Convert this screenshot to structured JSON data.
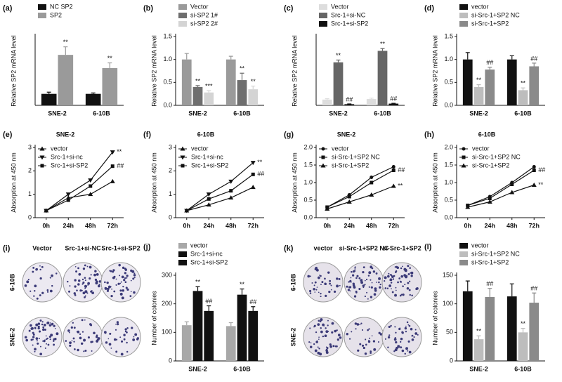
{
  "chart_data": [
    {
      "type": "bar",
      "label": "(a)",
      "ylabel": "Relative SP2 mRNA level",
      "categories": [
        "SNE-2",
        "6-10B"
      ],
      "ylim": [
        0,
        6
      ],
      "series": [
        {
          "name": "NC SP2",
          "color": "#111111",
          "values": [
            1.0,
            1.0
          ],
          "errors": [
            0.15,
            0.08
          ]
        },
        {
          "name": "SP2",
          "color": "#9a9a9a",
          "values": [
            4.4,
            3.25
          ],
          "errors": [
            0.7,
            0.45
          ],
          "annotations": [
            "**",
            "**"
          ]
        }
      ]
    },
    {
      "type": "bar",
      "label": "(b)",
      "ylabel": "Relative SP2 mRNA level",
      "categories": [
        "SNE-2",
        "6-10B"
      ],
      "ylim": [
        0,
        1.5
      ],
      "yticks": [
        {
          "value": 0,
          "label": "0.0"
        },
        {
          "value": 0.5,
          "label": "0.5"
        },
        {
          "value": 1,
          "label": "1.0"
        },
        {
          "value": 1.5,
          "label": "1.5"
        }
      ],
      "series": [
        {
          "name": "Vector",
          "color": "#9a9a9a",
          "values": [
            1.0,
            1.0
          ],
          "errors": [
            0.13,
            0.07
          ]
        },
        {
          "name": "si-SP2 1#",
          "color": "#6e6e6e",
          "values": [
            0.4,
            0.55
          ],
          "errors": [
            0.03,
            0.15
          ],
          "annotations": [
            "**",
            "**"
          ]
        },
        {
          "name": "si-SP2 2#",
          "color": "#d4d4d4",
          "values": [
            0.28,
            0.35
          ],
          "errors": [
            0.04,
            0.07
          ],
          "annotations": [
            "***",
            "**"
          ]
        }
      ]
    },
    {
      "type": "bar",
      "label": "(c)",
      "ylabel": "Relative SP2 mRNA level",
      "categories": [
        "SNE-2",
        "6-10B"
      ],
      "ylim": [
        0,
        12
      ],
      "series": [
        {
          "name": "Vector",
          "color": "#dddddd",
          "values": [
            1.0,
            1.1
          ],
          "errors": [
            0.15,
            0.15
          ]
        },
        {
          "name": "Src-1+si-NC",
          "color": "#666666",
          "values": [
            7.5,
            9.5
          ],
          "errors": [
            0.4,
            0.4
          ],
          "annotations": [
            "**",
            "**"
          ]
        },
        {
          "name": "Src-1+si-SP2",
          "color": "#111111",
          "values": [
            0.2,
            0.3
          ],
          "errors": [
            0.05,
            0.05
          ],
          "annotations": [
            "##",
            "##"
          ]
        }
      ]
    },
    {
      "type": "bar",
      "label": "(d)",
      "ylabel": "Relative SP2 mRNA level",
      "categories": [
        "SNE-2",
        "6-10B"
      ],
      "ylim": [
        0,
        1.5
      ],
      "yticks": [
        {
          "value": 0,
          "label": "0.0"
        },
        {
          "value": 0.5,
          "label": "0.5"
        },
        {
          "value": 1,
          "label": "1.0"
        },
        {
          "value": 1.5,
          "label": "1.5"
        }
      ],
      "series": [
        {
          "name": "vector",
          "color": "#111111",
          "values": [
            1.0,
            1.0
          ],
          "errors": [
            0.15,
            0.08
          ]
        },
        {
          "name": "si-Src-1+SP2 NC",
          "color": "#bdbdbd",
          "values": [
            0.4,
            0.33
          ],
          "errors": [
            0.05,
            0.05
          ],
          "annotations": [
            "**",
            "**"
          ]
        },
        {
          "name": "si-Src-1+SP2",
          "color": "#8a8a8a",
          "values": [
            0.78,
            0.85
          ],
          "errors": [
            0.05,
            0.07
          ],
          "annotations": [
            "##",
            "##"
          ]
        }
      ]
    },
    {
      "type": "line",
      "label": "(e)",
      "title": "SNE-2",
      "ylabel": "Absorption at 450 nm",
      "categories": [
        "0h",
        "24h",
        "48h",
        "72h"
      ],
      "ylim": [
        0,
        3
      ],
      "yticks": [
        0,
        1,
        2,
        3
      ],
      "series": [
        {
          "name": "vector",
          "marker": "triangle-up",
          "values": [
            0.3,
            0.85,
            1.0,
            1.55
          ]
        },
        {
          "name": "Src-1+si-nc",
          "marker": "triangle-down",
          "values": [
            0.3,
            1.0,
            1.6,
            2.8
          ],
          "end_annotation": "**"
        },
        {
          "name": "Src-1+si-SP2",
          "marker": "square",
          "values": [
            0.3,
            0.75,
            1.35,
            2.2
          ],
          "end_annotation": "##"
        }
      ]
    },
    {
      "type": "line",
      "label": "(f)",
      "title": "6-10B",
      "ylabel": "Absorption at 450 nm",
      "categories": [
        "0h",
        "24h",
        "48h",
        "72h"
      ],
      "ylim": [
        0,
        3
      ],
      "yticks": [
        0,
        1,
        2,
        3
      ],
      "series": [
        {
          "name": "vector",
          "marker": "triangle-up",
          "values": [
            0.3,
            0.55,
            0.85,
            1.3
          ]
        },
        {
          "name": "Src-1+si-nc",
          "marker": "triangle-down",
          "values": [
            0.3,
            1.0,
            1.55,
            2.35
          ],
          "end_annotation": "**"
        },
        {
          "name": "Src-1+si-SP2",
          "marker": "square",
          "values": [
            0.3,
            0.8,
            1.15,
            1.85
          ],
          "end_annotation": "##"
        }
      ]
    },
    {
      "type": "line",
      "label": "(g)",
      "title": "SNE-2",
      "ylabel": "Absorption at 450 nm",
      "categories": [
        "0h",
        "24h",
        "48h",
        "72h"
      ],
      "ylim": [
        0,
        2
      ],
      "yticks": [
        {
          "value": 0,
          "label": "0.0"
        },
        {
          "value": 0.5,
          "label": "0.5"
        },
        {
          "value": 1,
          "label": "1.0"
        },
        {
          "value": 1.5,
          "label": "1.5"
        },
        {
          "value": 2,
          "label": "2.0"
        }
      ],
      "series": [
        {
          "name": "vector",
          "marker": "circle",
          "values": [
            0.3,
            0.65,
            1.15,
            1.45
          ]
        },
        {
          "name": "si-Src-1+SP2 NC",
          "marker": "square",
          "values": [
            0.3,
            0.6,
            1.0,
            1.35
          ],
          "end_annotation": "##"
        },
        {
          "name": "si-Src-1+SP2",
          "marker": "triangle-up",
          "values": [
            0.25,
            0.45,
            0.65,
            0.9
          ],
          "end_annotation": "**"
        }
      ]
    },
    {
      "type": "line",
      "label": "(h)",
      "title": "6-10B",
      "ylabel": "Absorption at 450 nm",
      "categories": [
        "0h",
        "24h",
        "48h",
        "72h"
      ],
      "ylim": [
        0,
        2
      ],
      "yticks": [
        {
          "value": 0,
          "label": "0.0"
        },
        {
          "value": 0.5,
          "label": "0.5"
        },
        {
          "value": 1,
          "label": "1.0"
        },
        {
          "value": 1.5,
          "label": "1.5"
        },
        {
          "value": 2,
          "label": "2.0"
        }
      ],
      "series": [
        {
          "name": "vector",
          "marker": "circle",
          "values": [
            0.35,
            0.6,
            1.0,
            1.45
          ]
        },
        {
          "name": "si-Src-1+SP2 NC",
          "marker": "square",
          "values": [
            0.35,
            0.55,
            0.95,
            1.35
          ],
          "end_annotation": "##"
        },
        {
          "name": "si-Src-1+SP2",
          "marker": "triangle-up",
          "values": [
            0.3,
            0.45,
            0.72,
            0.93
          ],
          "end_annotation": "**"
        }
      ]
    },
    {
      "type": "bar",
      "label": "(j)",
      "ylabel": "Number of colonies",
      "categories": [
        "SNE-2",
        "6-10B"
      ],
      "ylim": [
        0,
        300
      ],
      "yticks": [
        0,
        100,
        200,
        300
      ],
      "series": [
        {
          "name": "vector",
          "color": "#a8a8a8",
          "values": [
            125,
            122
          ],
          "errors": [
            12,
            12
          ]
        },
        {
          "name": "Src-1+si-nc",
          "color": "#111111",
          "values": [
            245,
            232
          ],
          "errors": [
            15,
            20
          ],
          "annotations": [
            "**",
            "**"
          ]
        },
        {
          "name": "Src-1+si-SP2",
          "color": "#111111",
          "values": [
            175,
            175
          ],
          "errors": [
            18,
            15
          ],
          "annotations": [
            "##",
            "##"
          ]
        }
      ]
    },
    {
      "type": "bar",
      "label": "(l)",
      "ylabel": "Number of colonies",
      "categories": [
        "SNE-2",
        "6-10B"
      ],
      "ylim": [
        0,
        150
      ],
      "yticks": [
        0,
        50,
        100,
        150
      ],
      "series": [
        {
          "name": "vector",
          "color": "#111111",
          "values": [
            122,
            113
          ],
          "errors": [
            18,
            22
          ]
        },
        {
          "name": "si-Src-1+SP2 NC",
          "color": "#bdbdbd",
          "values": [
            38,
            50
          ],
          "errors": [
            6,
            7
          ],
          "annotations": [
            "**",
            "**"
          ]
        },
        {
          "name": "si-Src-1+SP2",
          "color": "#8a8a8a",
          "values": [
            112,
            102
          ],
          "errors": [
            15,
            17
          ],
          "annotations": [
            "##",
            "##"
          ]
        }
      ]
    }
  ],
  "colony_images": [
    {
      "label": "(i)",
      "columns": [
        "Vector",
        "Src-1+si-NC",
        "Src-1+si-SP2"
      ],
      "rows": [
        "6-10B",
        "SNE-2"
      ]
    },
    {
      "label": "(k)",
      "columns": [
        "vector",
        "si-Src-1+SP2 NC",
        "si-Src-1+SP2"
      ],
      "rows": [
        "6-10B",
        "SNE-2"
      ]
    }
  ]
}
